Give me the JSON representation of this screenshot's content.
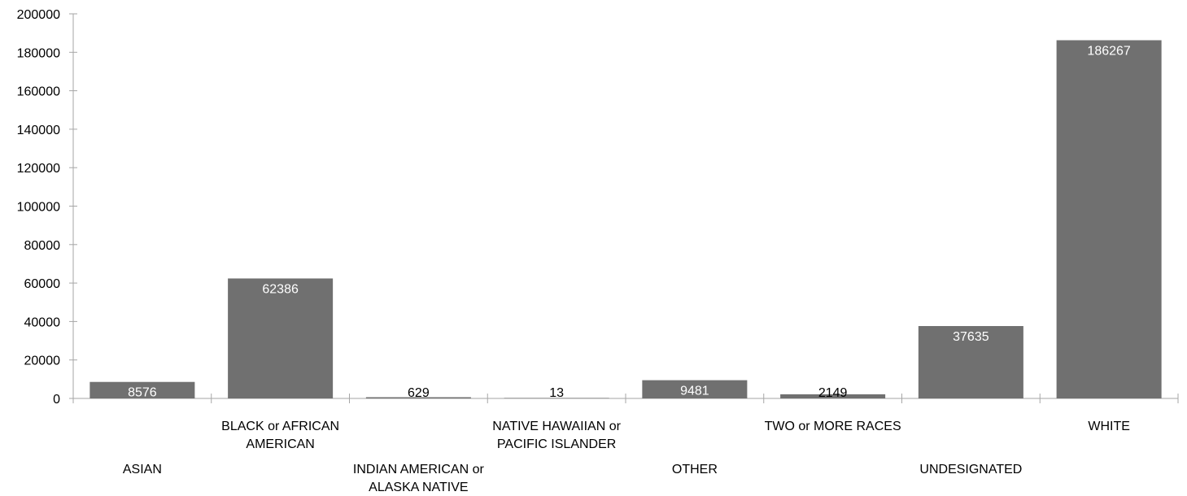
{
  "chart_data": {
    "type": "bar",
    "title": "",
    "xlabel": "",
    "ylabel": "",
    "categories": [
      [
        "ASIAN"
      ],
      [
        "BLACK or AFRICAN",
        "AMERICAN"
      ],
      [
        "INDIAN AMERICAN or",
        "ALASKA NATIVE"
      ],
      [
        "NATIVE HAWAIIAN or",
        "PACIFIC ISLANDER"
      ],
      [
        "OTHER"
      ],
      [
        "TWO or MORE RACES"
      ],
      [
        "UNDESIGNATED"
      ],
      [
        "WHITE"
      ]
    ],
    "values": [
      8576,
      62386,
      629,
      13,
      9481,
      2149,
      37635,
      186267
    ],
    "value_labels": [
      "8576",
      "62386",
      "629",
      "13",
      "9481",
      "2149",
      "37635",
      "186267"
    ],
    "ylim": [
      0,
      200000
    ],
    "yticks": [
      "0",
      "20000",
      "40000",
      "60000",
      "80000",
      "100000",
      "120000",
      "140000",
      "160000",
      "180000",
      "200000"
    ],
    "grid": false,
    "legend": "none",
    "bar_color": "#707070",
    "axis_color": "#a6a6a6",
    "inside_label_color": "#ffffff",
    "outside_label_color": "#000000"
  }
}
